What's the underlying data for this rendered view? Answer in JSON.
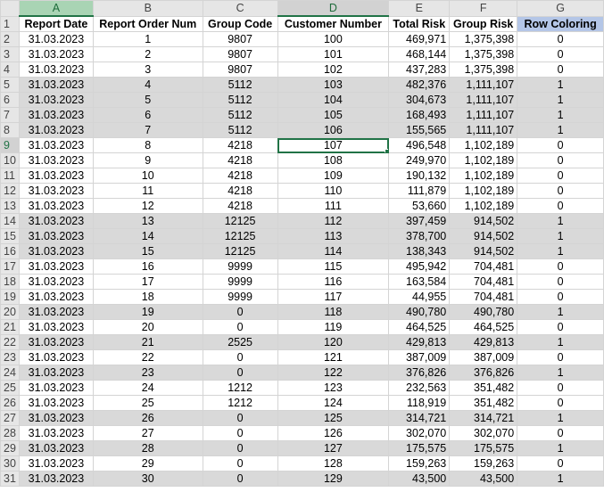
{
  "columns": [
    "A",
    "B",
    "C",
    "D",
    "E",
    "F",
    "G"
  ],
  "header_row_number": "1",
  "headers": [
    "Report Date",
    "Report Order Num",
    "Group Code",
    "Customer Number",
    "Total Risk",
    "Group Risk",
    "Row Coloring"
  ],
  "rows": [
    {
      "n": "2",
      "date": "31.03.2023",
      "order": "1",
      "group": "9807",
      "cust": "100",
      "total": "469,971",
      "grisk": "1,375,398",
      "color": "0",
      "gray": false
    },
    {
      "n": "3",
      "date": "31.03.2023",
      "order": "2",
      "group": "9807",
      "cust": "101",
      "total": "468,144",
      "grisk": "1,375,398",
      "color": "0",
      "gray": false
    },
    {
      "n": "4",
      "date": "31.03.2023",
      "order": "3",
      "group": "9807",
      "cust": "102",
      "total": "437,283",
      "grisk": "1,375,398",
      "color": "0",
      "gray": false
    },
    {
      "n": "5",
      "date": "31.03.2023",
      "order": "4",
      "group": "5112",
      "cust": "103",
      "total": "482,376",
      "grisk": "1,111,107",
      "color": "1",
      "gray": true
    },
    {
      "n": "6",
      "date": "31.03.2023",
      "order": "5",
      "group": "5112",
      "cust": "104",
      "total": "304,673",
      "grisk": "1,111,107",
      "color": "1",
      "gray": true
    },
    {
      "n": "7",
      "date": "31.03.2023",
      "order": "6",
      "group": "5112",
      "cust": "105",
      "total": "168,493",
      "grisk": "1,111,107",
      "color": "1",
      "gray": true
    },
    {
      "n": "8",
      "date": "31.03.2023",
      "order": "7",
      "group": "5112",
      "cust": "106",
      "total": "155,565",
      "grisk": "1,111,107",
      "color": "1",
      "gray": true
    },
    {
      "n": "9",
      "date": "31.03.2023",
      "order": "8",
      "group": "4218",
      "cust": "107",
      "total": "496,548",
      "grisk": "1,102,189",
      "color": "0",
      "gray": false
    },
    {
      "n": "10",
      "date": "31.03.2023",
      "order": "9",
      "group": "4218",
      "cust": "108",
      "total": "249,970",
      "grisk": "1,102,189",
      "color": "0",
      "gray": false
    },
    {
      "n": "11",
      "date": "31.03.2023",
      "order": "10",
      "group": "4218",
      "cust": "109",
      "total": "190,132",
      "grisk": "1,102,189",
      "color": "0",
      "gray": false
    },
    {
      "n": "12",
      "date": "31.03.2023",
      "order": "11",
      "group": "4218",
      "cust": "110",
      "total": "111,879",
      "grisk": "1,102,189",
      "color": "0",
      "gray": false
    },
    {
      "n": "13",
      "date": "31.03.2023",
      "order": "12",
      "group": "4218",
      "cust": "111",
      "total": "53,660",
      "grisk": "1,102,189",
      "color": "0",
      "gray": false
    },
    {
      "n": "14",
      "date": "31.03.2023",
      "order": "13",
      "group": "12125",
      "cust": "112",
      "total": "397,459",
      "grisk": "914,502",
      "color": "1",
      "gray": true
    },
    {
      "n": "15",
      "date": "31.03.2023",
      "order": "14",
      "group": "12125",
      "cust": "113",
      "total": "378,700",
      "grisk": "914,502",
      "color": "1",
      "gray": true
    },
    {
      "n": "16",
      "date": "31.03.2023",
      "order": "15",
      "group": "12125",
      "cust": "114",
      "total": "138,343",
      "grisk": "914,502",
      "color": "1",
      "gray": true
    },
    {
      "n": "17",
      "date": "31.03.2023",
      "order": "16",
      "group": "9999",
      "cust": "115",
      "total": "495,942",
      "grisk": "704,481",
      "color": "0",
      "gray": false
    },
    {
      "n": "18",
      "date": "31.03.2023",
      "order": "17",
      "group": "9999",
      "cust": "116",
      "total": "163,584",
      "grisk": "704,481",
      "color": "0",
      "gray": false
    },
    {
      "n": "19",
      "date": "31.03.2023",
      "order": "18",
      "group": "9999",
      "cust": "117",
      "total": "44,955",
      "grisk": "704,481",
      "color": "0",
      "gray": false
    },
    {
      "n": "20",
      "date": "31.03.2023",
      "order": "19",
      "group": "0",
      "cust": "118",
      "total": "490,780",
      "grisk": "490,780",
      "color": "1",
      "gray": true
    },
    {
      "n": "21",
      "date": "31.03.2023",
      "order": "20",
      "group": "0",
      "cust": "119",
      "total": "464,525",
      "grisk": "464,525",
      "color": "0",
      "gray": false
    },
    {
      "n": "22",
      "date": "31.03.2023",
      "order": "21",
      "group": "2525",
      "cust": "120",
      "total": "429,813",
      "grisk": "429,813",
      "color": "1",
      "gray": true
    },
    {
      "n": "23",
      "date": "31.03.2023",
      "order": "22",
      "group": "0",
      "cust": "121",
      "total": "387,009",
      "grisk": "387,009",
      "color": "0",
      "gray": false
    },
    {
      "n": "24",
      "date": "31.03.2023",
      "order": "23",
      "group": "0",
      "cust": "122",
      "total": "376,826",
      "grisk": "376,826",
      "color": "1",
      "gray": true
    },
    {
      "n": "25",
      "date": "31.03.2023",
      "order": "24",
      "group": "1212",
      "cust": "123",
      "total": "232,563",
      "grisk": "351,482",
      "color": "0",
      "gray": false
    },
    {
      "n": "26",
      "date": "31.03.2023",
      "order": "25",
      "group": "1212",
      "cust": "124",
      "total": "118,919",
      "grisk": "351,482",
      "color": "0",
      "gray": false
    },
    {
      "n": "27",
      "date": "31.03.2023",
      "order": "26",
      "group": "0",
      "cust": "125",
      "total": "314,721",
      "grisk": "314,721",
      "color": "1",
      "gray": true
    },
    {
      "n": "28",
      "date": "31.03.2023",
      "order": "27",
      "group": "0",
      "cust": "126",
      "total": "302,070",
      "grisk": "302,070",
      "color": "0",
      "gray": false
    },
    {
      "n": "29",
      "date": "31.03.2023",
      "order": "28",
      "group": "0",
      "cust": "127",
      "total": "175,575",
      "grisk": "175,575",
      "color": "1",
      "gray": true
    },
    {
      "n": "30",
      "date": "31.03.2023",
      "order": "29",
      "group": "0",
      "cust": "128",
      "total": "159,263",
      "grisk": "159,263",
      "color": "0",
      "gray": false
    },
    {
      "n": "31",
      "date": "31.03.2023",
      "order": "30",
      "group": "0",
      "cust": "129",
      "total": "43,500",
      "grisk": "43,500",
      "color": "1",
      "gray": true
    }
  ],
  "active_cell": {
    "column": "D",
    "row": "9"
  },
  "colors": {
    "gray_row": "#d9d9d9",
    "header_blue": "#b4c6e7",
    "selection_green": "#217346"
  }
}
